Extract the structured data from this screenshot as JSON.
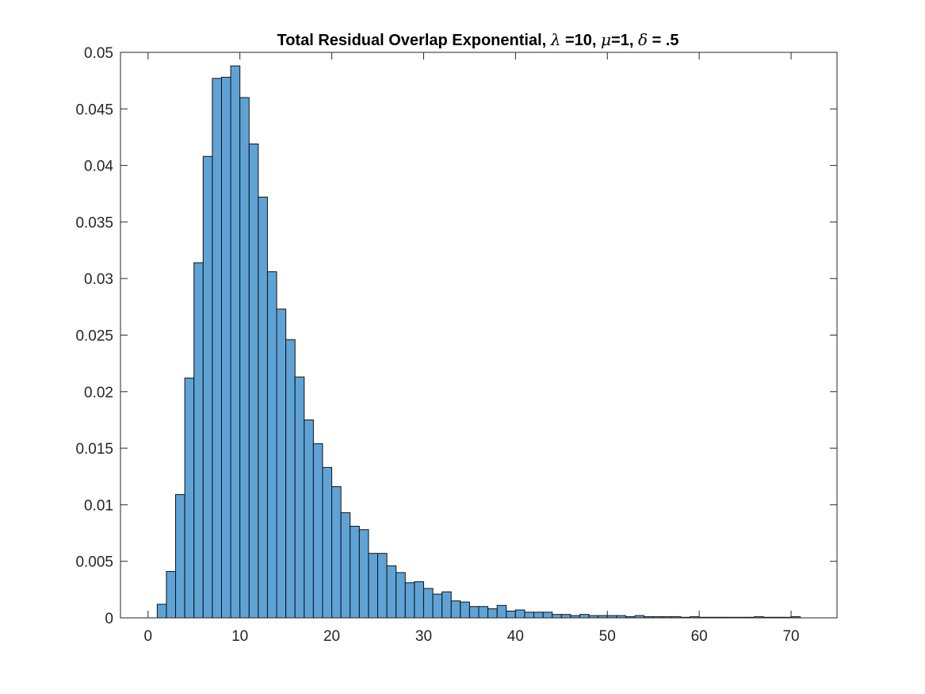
{
  "chart_data": {
    "type": "bar",
    "title": {
      "part1": "Total Residual Overlap Exponential, ",
      "sym1": "λ",
      "part2": " =10, ",
      "sym2": "μ",
      "part3": "=1, ",
      "sym3": "δ",
      "part4": " = .5"
    },
    "xlabel": "",
    "ylabel": "",
    "xlim": [
      -3,
      75
    ],
    "ylim": [
      0,
      0.05
    ],
    "xticks": [
      0,
      10,
      20,
      30,
      40,
      50,
      60,
      70
    ],
    "xtick_labels": [
      "0",
      "10",
      "20",
      "30",
      "40",
      "50",
      "60",
      "70"
    ],
    "yticks": [
      0,
      0.005,
      0.01,
      0.015,
      0.02,
      0.025,
      0.03,
      0.035,
      0.04,
      0.045,
      0.05
    ],
    "ytick_labels": [
      "0",
      "0.005",
      "0.01",
      "0.015",
      "0.02",
      "0.025",
      "0.03",
      "0.035",
      "0.04",
      "0.045",
      "0.05"
    ],
    "grid": false,
    "bin_start": 1,
    "bin_width": 1,
    "values": [
      0.0012,
      0.0041,
      0.0109,
      0.0212,
      0.0314,
      0.0408,
      0.0477,
      0.0478,
      0.0488,
      0.046,
      0.0419,
      0.0372,
      0.0306,
      0.0273,
      0.0246,
      0.0213,
      0.0175,
      0.0154,
      0.0133,
      0.0116,
      0.0093,
      0.0081,
      0.0078,
      0.0057,
      0.0057,
      0.0046,
      0.004,
      0.0031,
      0.0032,
      0.0026,
      0.0021,
      0.0023,
      0.0015,
      0.0014,
      0.001,
      0.001,
      0.0008,
      0.0011,
      0.0006,
      0.0007,
      0.0005,
      0.0005,
      0.0005,
      0.0003,
      0.0003,
      0.0002,
      0.0003,
      0.0002,
      0.0002,
      0.0002,
      0.0002,
      0.0001,
      0.0002,
      0.0001,
      0.0001,
      0.0001,
      0.0001,
      5e-05,
      0.0001,
      5e-05,
      5e-05,
      5e-05,
      5e-05,
      5e-05,
      5e-05,
      0.0001,
      5e-05,
      5e-05,
      5e-05,
      0.0001
    ],
    "colors": {
      "bar_fill": "#5fa3d6",
      "bar_edge": "#111111",
      "axes": "#262626",
      "tick_text": "#262626",
      "title": "#000000"
    }
  }
}
